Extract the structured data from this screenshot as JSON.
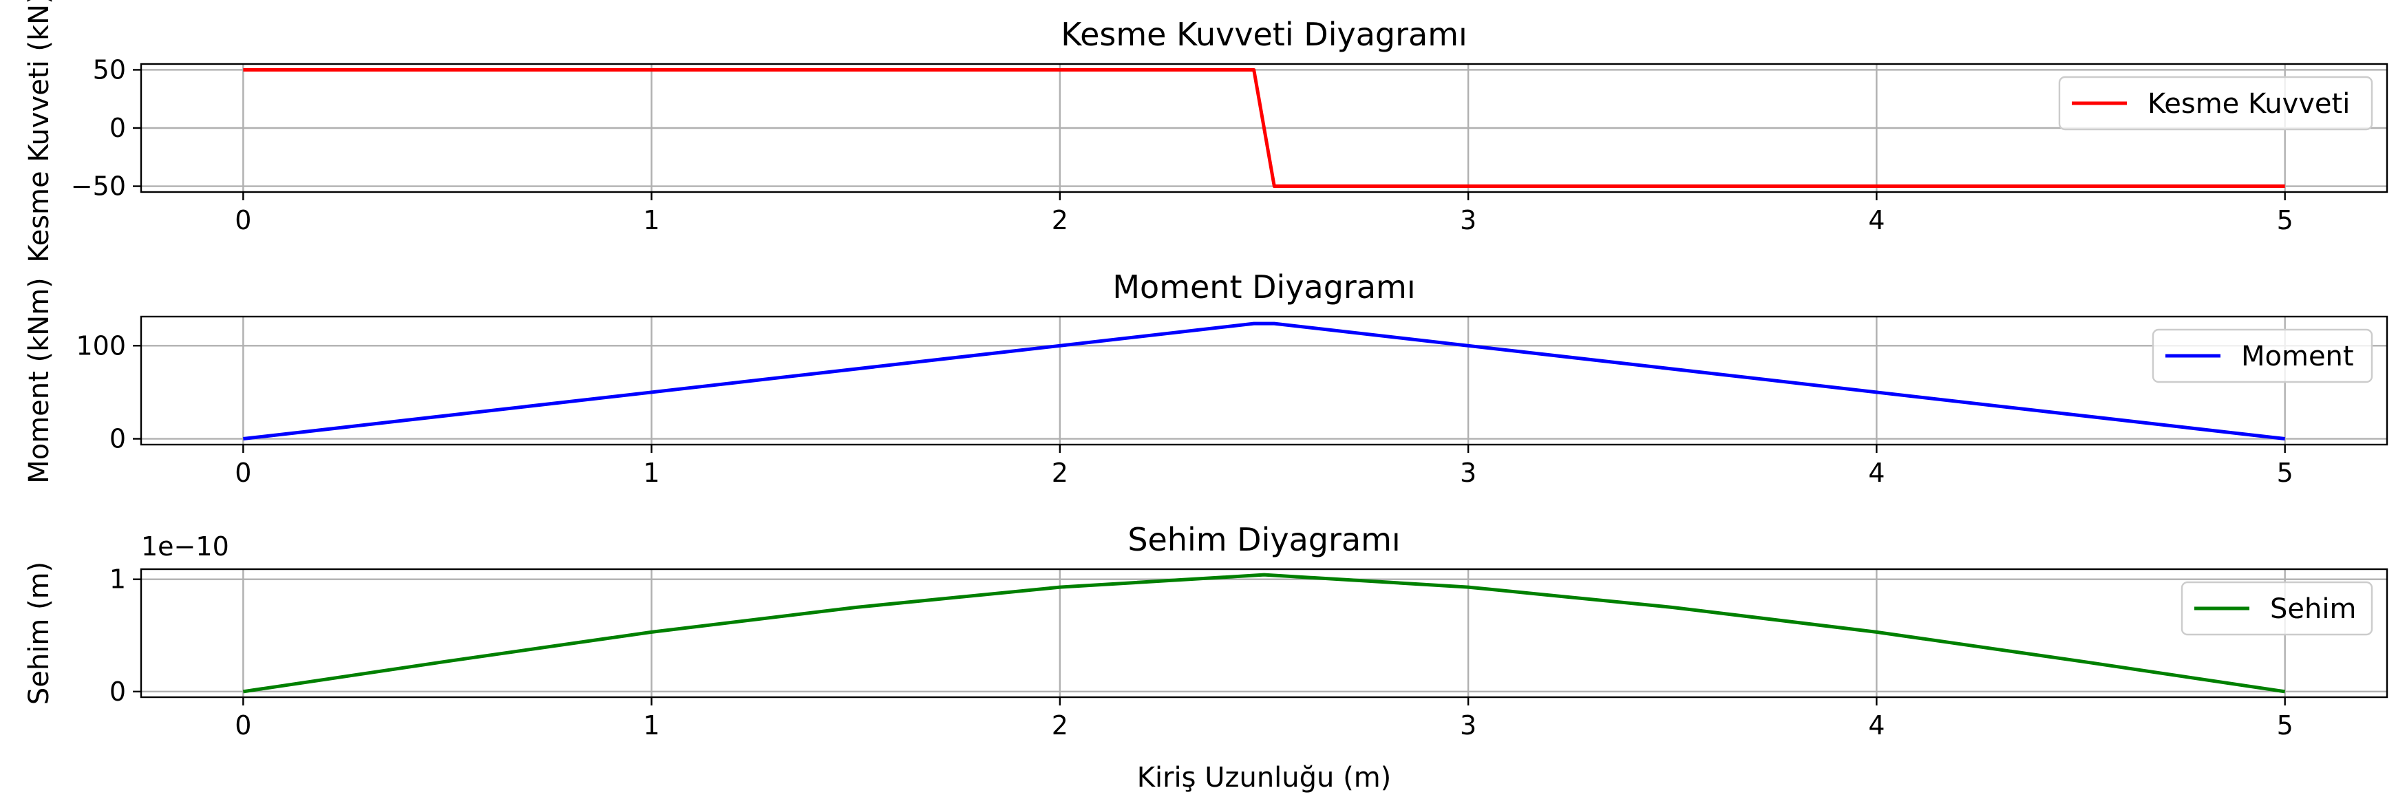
{
  "chart_data": [
    {
      "type": "line",
      "title": "Kesme Kuvveti Diyagramı",
      "xlabel": "",
      "ylabel": "Kesme Kuvveti (kN)",
      "xlim": [
        -0.25,
        5.25
      ],
      "ylim": [
        -55,
        55
      ],
      "x_ticks": [
        "0",
        "1",
        "2",
        "3",
        "4",
        "5"
      ],
      "y_ticks": [
        {
          "value": 50,
          "label": "50"
        },
        {
          "value": 0,
          "label": "0"
        },
        {
          "value": -50,
          "label": "−50"
        }
      ],
      "y_offset_text": "",
      "grid": true,
      "legend_position": "right",
      "series": [
        {
          "name": "Kesme Kuvveti",
          "color": "#ff0000",
          "x": [
            0,
            2.475,
            2.525,
            5
          ],
          "y": [
            50,
            50,
            -50,
            -50
          ]
        }
      ]
    },
    {
      "type": "line",
      "title": "Moment Diyagramı",
      "xlabel": "",
      "ylabel": "Moment (kNm)",
      "xlim": [
        -0.25,
        5.25
      ],
      "ylim": [
        -6.25,
        131.25
      ],
      "x_ticks": [
        "0",
        "1",
        "2",
        "3",
        "4",
        "5"
      ],
      "y_ticks": [
        {
          "value": 100,
          "label": "100"
        },
        {
          "value": 0,
          "label": "0"
        }
      ],
      "y_offset_text": "",
      "grid": true,
      "legend_position": "top-right",
      "series": [
        {
          "name": "Moment",
          "color": "#0000ff",
          "x": [
            0,
            2.475,
            2.525,
            5
          ],
          "y": [
            0,
            123.75,
            123.75,
            0
          ]
        }
      ]
    },
    {
      "type": "line",
      "title": "Sehim Diyagramı",
      "xlabel": "Kiriş Uzunluğu (m)",
      "ylabel": "Sehim (m)",
      "xlim": [
        -0.25,
        5.25
      ],
      "ylim": [
        -0.05,
        1.09
      ],
      "x_ticks": [
        "0",
        "1",
        "2",
        "3",
        "4",
        "5"
      ],
      "y_ticks": [
        {
          "value": 1,
          "label": "1"
        },
        {
          "value": 0,
          "label": "0"
        }
      ],
      "y_offset_text": "1e−10",
      "grid": true,
      "legend_position": "right",
      "series": [
        {
          "name": "Sehim",
          "color": "#008000",
          "x": [
            0,
            0.5,
            1,
            1.5,
            2,
            2.5,
            3,
            3.5,
            4,
            4.5,
            5
          ],
          "y": [
            0,
            0.27,
            0.53,
            0.75,
            0.93,
            1.04,
            0.93,
            0.75,
            0.53,
            0.27,
            0
          ]
        }
      ]
    }
  ]
}
